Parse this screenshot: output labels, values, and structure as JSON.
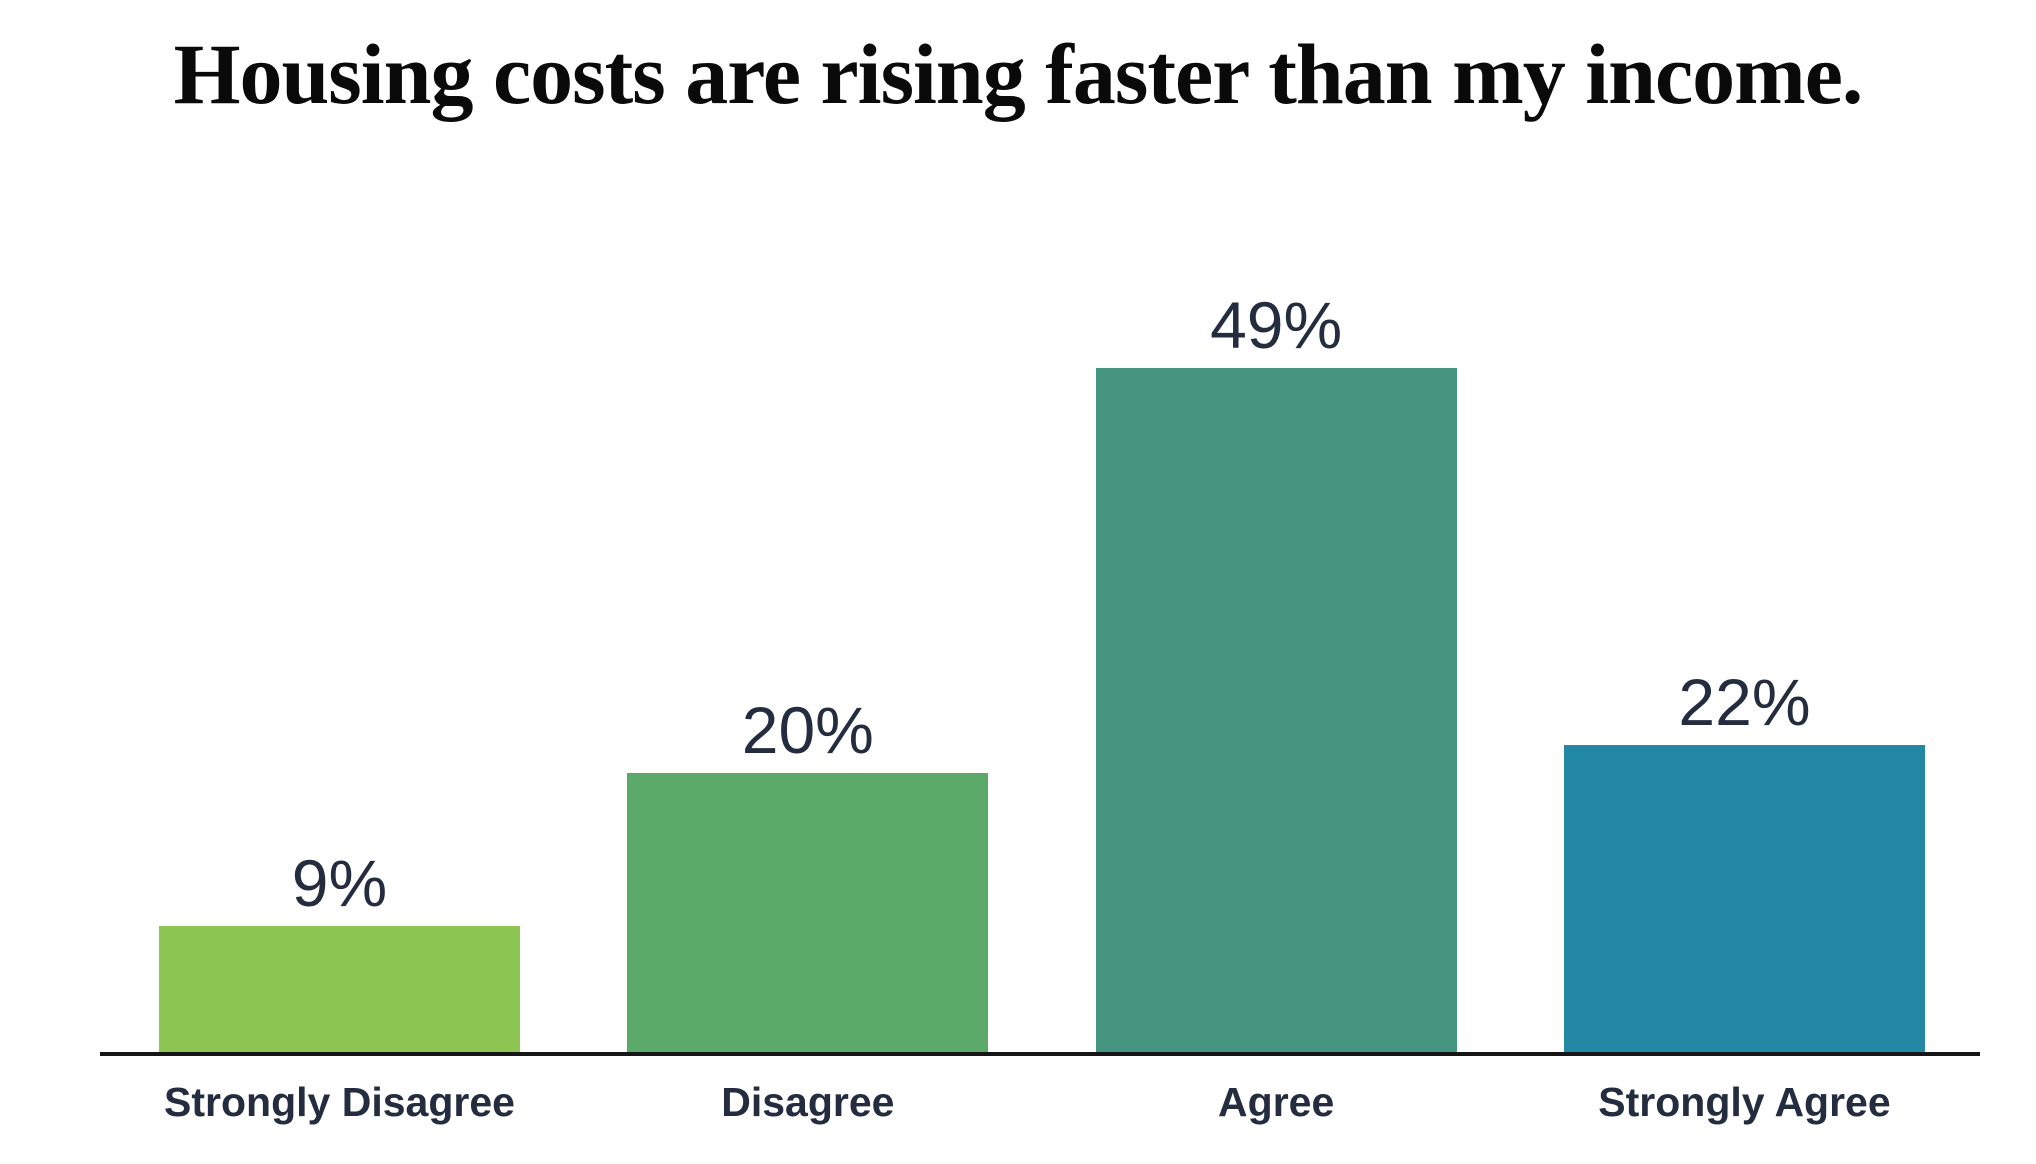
{
  "page": {
    "title": "Housing costs are rising faster than my income."
  },
  "chart_data": {
    "type": "bar",
    "title": "Housing costs are rising faster than my income.",
    "categories": [
      "Strongly Disagree",
      "Disagree",
      "Agree",
      "Strongly Agree"
    ],
    "values": [
      9,
      20,
      49,
      22
    ],
    "value_labels": [
      "9%",
      "20%",
      "49%",
      "22%"
    ],
    "unit": "percent",
    "ylim": [
      0,
      55
    ],
    "grid": false,
    "legend": "none",
    "bar_colors": [
      "#8cc552",
      "#5baa69",
      "#459480",
      "#2388a4"
    ],
    "label_color": "#232d3f",
    "axis_color": "#161616",
    "background": "#ffffff"
  }
}
